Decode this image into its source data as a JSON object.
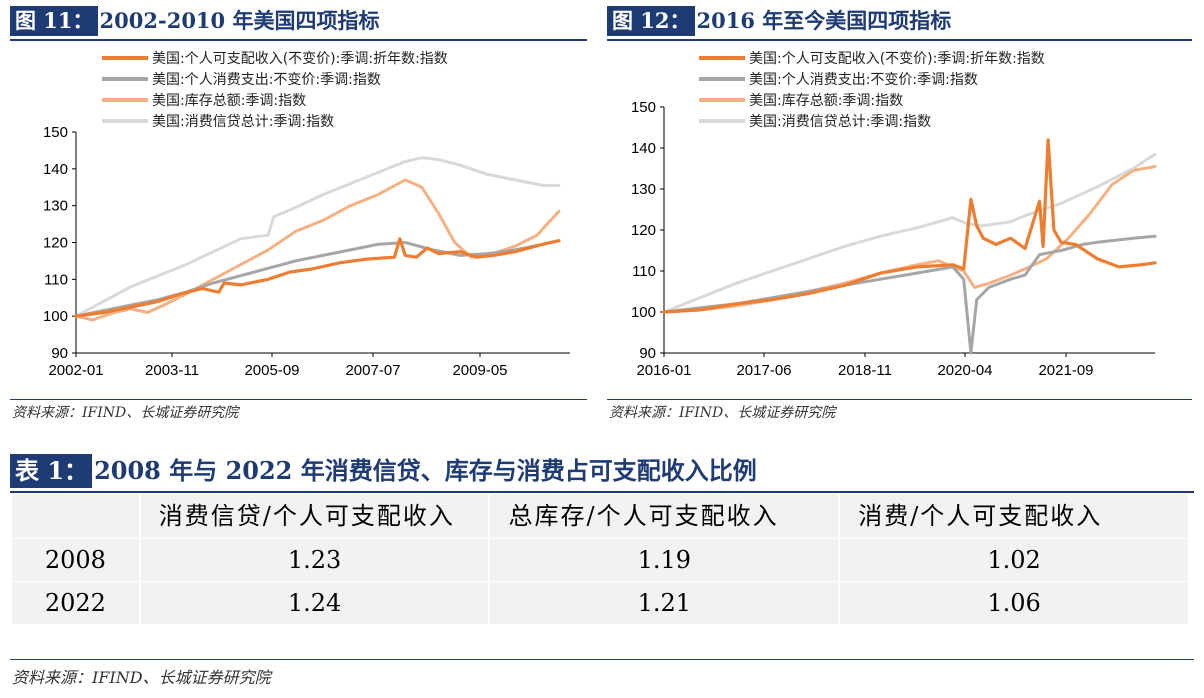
{
  "figures": [
    {
      "tag": "图 11：",
      "title": "2002-2010 年美国四项指标",
      "source": "资料来源：IFIND、长城证券研究院"
    },
    {
      "tag": "图 12：",
      "title": "2016 年至今美国四项指标",
      "source": "资料来源：IFIND、长城证券研究院"
    }
  ],
  "table": {
    "tag": "表 1：",
    "title": "2008 年与 2022 年消费信贷、库存与消费占可支配收入比例",
    "headers": [
      "",
      "消费信贷/个人可支配收入",
      "总库存/个人可支配收入",
      "消费/个人可支配收入"
    ],
    "rows": [
      {
        "year": "2008",
        "values": [
          "1.23",
          "1.19",
          "1.02"
        ]
      },
      {
        "year": "2022",
        "values": [
          "1.24",
          "1.21",
          "1.06"
        ]
      }
    ],
    "source": "资料来源：IFIND、长城证券研究院"
  },
  "colors": {
    "income": "#ed7d31",
    "consumption": "#a6a6a6",
    "inventory": "#f4b183",
    "credit": "#d9d9d9",
    "brand": "#1f3b73"
  },
  "chart_data": [
    {
      "type": "line",
      "ylim": [
        90,
        150
      ],
      "yticks": [
        90,
        100,
        110,
        120,
        130,
        140,
        150
      ],
      "xticks": [
        "2002-01",
        "2003-11",
        "2005-09",
        "2007-07",
        "2009-05"
      ],
      "xrange": [
        2002.0,
        2011.0
      ],
      "grid": false,
      "legend": "top-left",
      "series": [
        {
          "name": "美国:个人可支配收入(不变价):季调:折年数:指数",
          "key": "income",
          "x": [
            2002.0,
            2002.5,
            2003.0,
            2003.5,
            2003.9,
            2004.3,
            2004.6,
            2004.7,
            2005.0,
            2005.5,
            2005.9,
            2006.3,
            2006.8,
            2007.3,
            2007.8,
            2007.9,
            2008.0,
            2008.2,
            2008.4,
            2008.6,
            2009.0,
            2009.3,
            2009.6,
            2010.0,
            2010.5,
            2010.8
          ],
          "y": [
            100,
            101,
            102.5,
            104,
            106,
            107.5,
            106.5,
            109,
            108.5,
            110,
            112,
            112.8,
            114.5,
            115.5,
            116,
            121,
            116.5,
            116,
            118.5,
            117,
            117.5,
            116,
            116.5,
            117.5,
            119.5,
            120.5
          ]
        },
        {
          "name": "美国:个人消费支出:不变价:季调:指数",
          "key": "consumption",
          "x": [
            2002.0,
            2002.5,
            2003.0,
            2003.5,
            2004.0,
            2004.5,
            2005.0,
            2005.5,
            2006.0,
            2006.5,
            2007.0,
            2007.5,
            2008.0,
            2008.5,
            2009.0,
            2009.5,
            2010.0,
            2010.5,
            2010.8
          ],
          "y": [
            100,
            101.5,
            103,
            104.5,
            106.5,
            109,
            111,
            113,
            115,
            116.5,
            118,
            119.5,
            120,
            118,
            116.5,
            117,
            118,
            119.5,
            120.5
          ]
        },
        {
          "name": "美国:库存总额:季调:指数",
          "key": "inventory",
          "x": [
            2002.0,
            2002.3,
            2002.7,
            2003.0,
            2003.3,
            2003.6,
            2004.0,
            2004.5,
            2005.0,
            2005.5,
            2006.0,
            2006.5,
            2007.0,
            2007.5,
            2008.0,
            2008.3,
            2008.6,
            2008.9,
            2009.2,
            2009.6,
            2010.0,
            2010.4,
            2010.8
          ],
          "y": [
            100,
            99,
            101,
            102,
            101,
            103,
            106,
            110,
            114,
            118,
            123,
            126,
            130,
            133,
            137,
            135,
            128,
            120,
            116,
            117,
            119,
            122,
            128.5
          ]
        },
        {
          "name": "美国:消费信贷总计:季调:指数",
          "key": "credit",
          "x": [
            2002.0,
            2002.5,
            2003.0,
            2003.5,
            2004.0,
            2004.5,
            2005.0,
            2005.5,
            2005.6,
            2006.0,
            2006.5,
            2007.0,
            2007.5,
            2008.0,
            2008.3,
            2008.6,
            2009.0,
            2009.5,
            2010.0,
            2010.5,
            2010.8
          ],
          "y": [
            100,
            104,
            108,
            111,
            114,
            117.5,
            121,
            122,
            127,
            129.5,
            133,
            136,
            139,
            142,
            143,
            142.5,
            141,
            138.5,
            137,
            135.5,
            135.5
          ]
        }
      ]
    },
    {
      "type": "line",
      "ylim": [
        90,
        150
      ],
      "yticks": [
        90,
        100,
        110,
        120,
        130,
        140,
        150
      ],
      "xticks": [
        "2016-01",
        "2017-06",
        "2018-11",
        "2020-04",
        "2021-09"
      ],
      "xrange": [
        2016.0,
        2022.8
      ],
      "grid": false,
      "legend": "top-left",
      "series": [
        {
          "name": "美国:个人可支配收入(不变价):季调:折年数:指数",
          "key": "income",
          "x": [
            2016.0,
            2016.5,
            2017.0,
            2017.5,
            2018.0,
            2018.5,
            2019.0,
            2019.5,
            2020.0,
            2020.15,
            2020.25,
            2020.33,
            2020.42,
            2020.6,
            2020.8,
            2021.0,
            2021.2,
            2021.25,
            2021.32,
            2021.4,
            2021.5,
            2021.7,
            2022.0,
            2022.3,
            2022.6,
            2022.8
          ],
          "y": [
            100,
            100.5,
            102,
            103,
            104.5,
            106.5,
            109.5,
            111,
            111.5,
            110.5,
            127.5,
            121,
            118,
            116.5,
            118,
            115.5,
            127,
            116,
            142,
            120,
            117,
            116.5,
            113,
            111,
            111.5,
            112
          ]
        },
        {
          "name": "美国:个人消费支出:不变价:季调:指数",
          "key": "consumption",
          "x": [
            2016.0,
            2016.5,
            2017.0,
            2017.5,
            2018.0,
            2018.5,
            2019.0,
            2019.5,
            2020.0,
            2020.15,
            2020.25,
            2020.33,
            2020.5,
            2020.8,
            2021.0,
            2021.2,
            2021.5,
            2021.8,
            2022.0,
            2022.5,
            2022.8
          ],
          "y": [
            100,
            101,
            102,
            103.5,
            105,
            106.5,
            108,
            109.5,
            111,
            108,
            90,
            103,
            106,
            108,
            109,
            114,
            115,
            116.5,
            117,
            118,
            118.5
          ]
        },
        {
          "name": "美国:库存总额:季调:指数",
          "key": "inventory",
          "x": [
            2016.0,
            2016.5,
            2017.0,
            2017.5,
            2018.0,
            2018.5,
            2019.0,
            2019.5,
            2019.8,
            2020.0,
            2020.15,
            2020.3,
            2020.5,
            2020.8,
            2021.0,
            2021.3,
            2021.6,
            2021.9,
            2022.2,
            2022.5,
            2022.8
          ],
          "y": [
            100,
            100.5,
            101.5,
            103,
            105,
            107,
            109.5,
            111.5,
            112.5,
            111,
            110,
            106,
            107,
            109,
            110.5,
            113,
            118,
            124,
            131,
            134.5,
            135.5
          ]
        },
        {
          "name": "美国:消费信贷总计:季调:指数",
          "key": "credit",
          "x": [
            2016.0,
            2016.5,
            2017.0,
            2017.5,
            2018.0,
            2018.5,
            2019.0,
            2019.5,
            2020.0,
            2020.2,
            2020.4,
            2020.8,
            2021.0,
            2021.5,
            2022.0,
            2022.5,
            2022.8
          ],
          "y": [
            100,
            103.5,
            107,
            110,
            113,
            116,
            118.5,
            120.5,
            123,
            121.5,
            121,
            122,
            123.5,
            126.5,
            130.5,
            135,
            138.5
          ]
        }
      ]
    }
  ]
}
